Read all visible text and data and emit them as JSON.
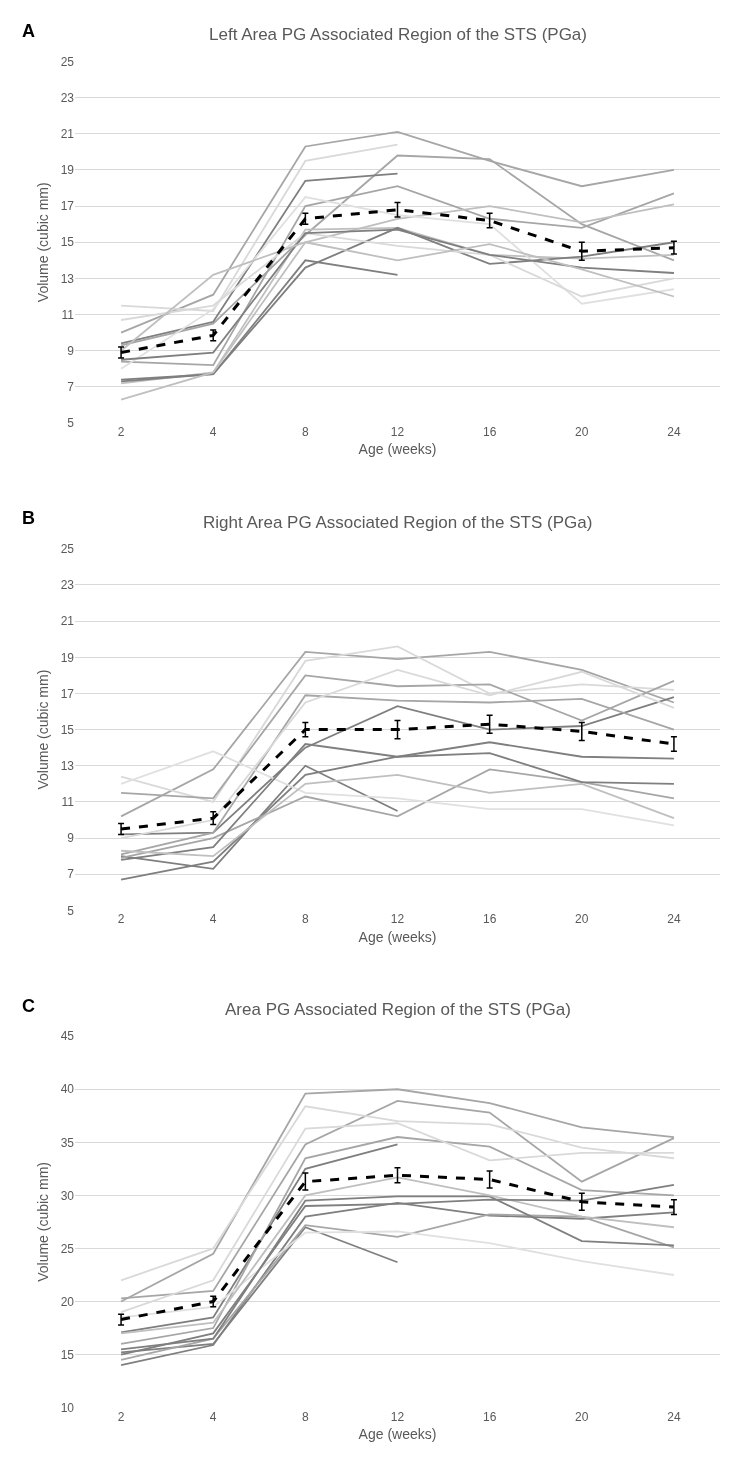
{
  "chart_data": [
    {
      "type": "line",
      "title": "Left Area PG Associated Region of the STS (PGa)",
      "xlabel": "Age (weeks)",
      "ylabel": "Volume (cubic mm)",
      "annotations": [
        "A"
      ],
      "categories": [
        "2",
        "4",
        "8",
        "12",
        "16",
        "20",
        "24"
      ],
      "ylim": [
        5,
        25
      ],
      "yticks": [
        5,
        7,
        9,
        11,
        13,
        15,
        17,
        19,
        21,
        23,
        25
      ],
      "grid": "y",
      "legend": false,
      "marker": "none",
      "series": [
        {
          "color": "#a6a6a6",
          "values": [
            10.0,
            12.1,
            20.3,
            21.1,
            19.5,
            18.1,
            19.0
          ]
        },
        {
          "color": "#d9d9d9",
          "values": [
            11.5,
            11.2,
            19.5,
            20.4,
            null,
            null,
            null
          ]
        },
        {
          "color": "#a6a6a6",
          "values": [
            9.3,
            10.5,
            15.4,
            19.8,
            19.6,
            16.0,
            14.0
          ]
        },
        {
          "color": "#7f7f7f",
          "values": [
            9.4,
            10.6,
            18.4,
            18.8,
            null,
            null,
            null
          ]
        },
        {
          "color": "#a6a6a6",
          "values": [
            8.4,
            8.2,
            17.0,
            18.1,
            16.3,
            15.8,
            17.7
          ]
        },
        {
          "color": "#bfbfbf",
          "values": [
            7.2,
            7.8,
            15.7,
            15.8,
            14.3,
            14.1,
            14.3
          ]
        },
        {
          "color": "#7f7f7f",
          "values": [
            7.3,
            7.7,
            13.6,
            15.8,
            13.8,
            14.2,
            15.0
          ]
        },
        {
          "color": "#7f7f7f",
          "values": [
            7.4,
            7.7,
            14.0,
            13.2,
            null,
            null,
            null
          ]
        },
        {
          "color": "#bfbfbf",
          "values": [
            6.3,
            7.8,
            15.0,
            16.3,
            17.0,
            16.1,
            17.1
          ]
        },
        {
          "color": "#e0e0e0",
          "values": [
            8.0,
            11.3,
            17.5,
            16.5,
            16.0,
            11.6,
            12.4
          ]
        },
        {
          "color": "#d9d9d9",
          "values": [
            10.7,
            11.5,
            15.5,
            14.8,
            14.3,
            12.0,
            13.0
          ]
        },
        {
          "color": "#7f7f7f",
          "values": [
            8.5,
            8.9,
            15.5,
            15.7,
            14.3,
            13.6,
            13.3
          ]
        },
        {
          "color": "#bfbfbf",
          "values": [
            9.0,
            13.2,
            15.0,
            14.0,
            14.9,
            13.5,
            12.0
          ]
        },
        {
          "color": "#000000",
          "line_style": "dashed",
          "values": [
            8.9,
            9.85,
            16.3,
            16.8,
            16.2,
            14.5,
            14.7
          ],
          "errors": [
            0.3,
            0.3,
            0.3,
            0.4,
            0.4,
            0.5,
            0.35
          ]
        }
      ]
    },
    {
      "type": "line",
      "title": "Right Area PG Associated Region of the STS (PGa)",
      "xlabel": "Age (weeks)",
      "ylabel": "Volume (cubic mm)",
      "annotations": [
        "B"
      ],
      "categories": [
        "2",
        "4",
        "8",
        "12",
        "16",
        "20",
        "24"
      ],
      "ylim": [
        5,
        25
      ],
      "yticks": [
        5,
        7,
        9,
        11,
        13,
        15,
        17,
        19,
        21,
        23,
        25
      ],
      "grid": "y",
      "legend": false,
      "marker": "none",
      "series": [
        {
          "color": "#a6a6a6",
          "values": [
            10.2,
            12.8,
            19.3,
            18.9,
            19.3,
            18.3,
            16.5
          ]
        },
        {
          "color": "#d9d9d9",
          "values": [
            12.4,
            11.0,
            18.8,
            19.6,
            17.0,
            17.5,
            17.2
          ]
        },
        {
          "color": "#a6a6a6",
          "values": [
            11.5,
            11.2,
            18.0,
            17.4,
            17.5,
            15.5,
            17.7
          ]
        },
        {
          "color": "#7f7f7f",
          "values": [
            9.2,
            9.3,
            14.0,
            16.3,
            15.0,
            15.2,
            16.8
          ]
        },
        {
          "color": "#a6a6a6",
          "values": [
            8.1,
            9.3,
            16.9,
            16.6,
            16.5,
            16.7,
            15.0
          ]
        },
        {
          "color": "#7f7f7f",
          "values": [
            6.7,
            7.7,
            12.5,
            13.5,
            14.3,
            13.5,
            13.4
          ]
        },
        {
          "color": "#7f7f7f",
          "values": [
            8.0,
            7.3,
            13.0,
            10.5,
            null,
            null,
            null
          ]
        },
        {
          "color": "#a6a6a6",
          "values": [
            7.9,
            9.0,
            11.3,
            10.2,
            12.8,
            12.1,
            11.2
          ]
        },
        {
          "color": "#e0e0e0",
          "values": [
            12.0,
            13.8,
            11.5,
            11.2,
            10.6,
            10.6,
            9.7
          ]
        },
        {
          "color": "#7f7f7f",
          "values": [
            7.8,
            8.5,
            14.2,
            13.5,
            13.7,
            12.1,
            12.0
          ]
        },
        {
          "color": "#d9d9d9",
          "values": [
            9.0,
            10.0,
            16.5,
            18.3,
            16.9,
            18.2,
            16.2
          ]
        },
        {
          "color": "#bfbfbf",
          "values": [
            8.3,
            8.0,
            12.0,
            12.5,
            11.5,
            12.0,
            10.1
          ]
        },
        {
          "color": "#000000",
          "line_style": "dashed",
          "values": [
            9.5,
            10.1,
            15.0,
            15.0,
            15.3,
            14.9,
            14.2
          ],
          "errors": [
            0.3,
            0.35,
            0.4,
            0.5,
            0.5,
            0.5,
            0.4
          ]
        }
      ]
    },
    {
      "type": "line",
      "title": "Area PG Associated Region of the STS (PGa)",
      "xlabel": "Age (weeks)",
      "ylabel": "Volume (cubic mm)",
      "annotations": [
        "C"
      ],
      "categories": [
        "2",
        "4",
        "8",
        "12",
        "16",
        "20",
        "24"
      ],
      "ylim": [
        10,
        45
      ],
      "yticks": [
        10,
        15,
        20,
        25,
        30,
        35,
        40,
        45
      ],
      "grid": "y",
      "legend": false,
      "marker": "none",
      "series": [
        {
          "color": "#a6a6a6",
          "values": [
            20.0,
            24.5,
            39.6,
            40.0,
            38.7,
            36.4,
            35.5
          ]
        },
        {
          "color": "#a6a6a6",
          "values": [
            20.3,
            21.0,
            34.8,
            38.9,
            37.8,
            31.3,
            35.4
          ]
        },
        {
          "color": "#d9d9d9",
          "values": [
            22.0,
            25.0,
            38.4,
            37.0,
            36.7,
            34.5,
            33.5
          ]
        },
        {
          "color": "#7f7f7f",
          "values": [
            17.1,
            18.5,
            32.5,
            34.8,
            null,
            null,
            null
          ]
        },
        {
          "color": "#a6a6a6",
          "values": [
            16.0,
            17.5,
            33.5,
            35.5,
            34.6,
            30.5,
            30.0
          ]
        },
        {
          "color": "#7f7f7f",
          "values": [
            14.0,
            15.9,
            28.0,
            29.3,
            28.1,
            27.8,
            28.4
          ]
        },
        {
          "color": "#7f7f7f",
          "values": [
            15.2,
            16.0,
            27.0,
            23.7,
            null,
            null,
            null
          ]
        },
        {
          "color": "#a6a6a6",
          "values": [
            14.5,
            16.5,
            27.2,
            26.1,
            28.2,
            28.0,
            25.1
          ]
        },
        {
          "color": "#7f7f7f",
          "values": [
            15.5,
            16.5,
            29.5,
            29.9,
            29.9,
            25.7,
            25.3
          ]
        },
        {
          "color": "#e0e0e0",
          "values": [
            18.5,
            19.5,
            26.5,
            26.6,
            25.5,
            23.8,
            22.5
          ]
        },
        {
          "color": "#d9d9d9",
          "values": [
            19.0,
            22.0,
            36.3,
            36.8,
            33.3,
            34.0,
            34.0
          ]
        },
        {
          "color": "#bfbfbf",
          "values": [
            17.0,
            18.0,
            30.0,
            31.7,
            30.0,
            28.0,
            27.0
          ]
        },
        {
          "color": "#7f7f7f",
          "values": [
            15.0,
            17.0,
            29.0,
            29.2,
            29.6,
            29.5,
            31.0
          ]
        },
        {
          "color": "#000000",
          "line_style": "dashed",
          "values": [
            18.3,
            20.0,
            31.3,
            31.9,
            31.5,
            29.4,
            28.9
          ],
          "errors": [
            0.5,
            0.5,
            0.8,
            0.7,
            0.8,
            0.8,
            0.7
          ]
        }
      ]
    }
  ]
}
